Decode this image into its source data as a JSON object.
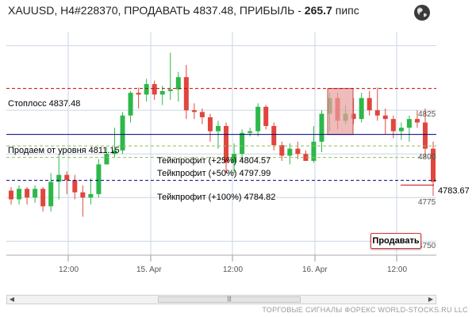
{
  "header": {
    "title_prefix": "XAUUSD, H4#228370, ПРОДАВАТЬ 4837.48, ПРИБЫЛЬ - ",
    "profit_value": "265.7",
    "profit_unit": " пипс",
    "globe_icon": "globe-icon"
  },
  "levels": {
    "stoploss_label": "Стоплосс 4837.48",
    "entry_label": "Продаем от уровня 4811.15",
    "tp1_label": "Тейкпрофит (+25%) 4804.57",
    "tp2_label": "Тейкпрофит (+50%) 4797.99",
    "tp3_label": "Тейкпрофит (+100%) 4784.82",
    "current_price_label": "4783.67"
  },
  "axis": {
    "price_ticks": [
      "4825",
      "4800",
      "4775",
      "4750"
    ],
    "time_ticks": [
      "12:00",
      "15. Apr",
      "12:00",
      "16. Apr",
      "12:00"
    ]
  },
  "sell_button_label": "Продавать",
  "footer_text": "ТОРГОВЫЕ СИГНАЛЫ ФОРЕКС WORLD-STOCKS.RU LLC",
  "colors": {
    "bull": "#2db84a",
    "bear": "#e0463e",
    "stoploss": "#cc0000",
    "entry": "#000080",
    "tp": "#8fbf5a"
  },
  "chart_data": {
    "type": "candlestick",
    "symbol": "XAUUSD",
    "timeframe": "H4",
    "candles": [
      {
        "o": 4779,
        "h": 4781,
        "l": 4771,
        "c": 4774
      },
      {
        "o": 4774,
        "h": 4782,
        "l": 4771,
        "c": 4780
      },
      {
        "o": 4780,
        "h": 4781,
        "l": 4771,
        "c": 4775
      },
      {
        "o": 4775,
        "h": 4782,
        "l": 4772,
        "c": 4780
      },
      {
        "o": 4780,
        "h": 4781,
        "l": 4767,
        "c": 4770
      },
      {
        "o": 4770,
        "h": 4789,
        "l": 4767,
        "c": 4784
      },
      {
        "o": 4784,
        "h": 4799,
        "l": 4774,
        "c": 4788
      },
      {
        "o": 4788,
        "h": 4790,
        "l": 4777,
        "c": 4785
      },
      {
        "o": 4785,
        "h": 4788,
        "l": 4774,
        "c": 4778
      },
      {
        "o": 4778,
        "h": 4782,
        "l": 4764,
        "c": 4775
      },
      {
        "o": 4775,
        "h": 4786,
        "l": 4771,
        "c": 4777
      },
      {
        "o": 4777,
        "h": 4797,
        "l": 4775,
        "c": 4794
      },
      {
        "o": 4794,
        "h": 4804,
        "l": 4794,
        "c": 4800
      },
      {
        "o": 4800,
        "h": 4815,
        "l": 4798,
        "c": 4802
      },
      {
        "o": 4802,
        "h": 4824,
        "l": 4800,
        "c": 4822
      },
      {
        "o": 4822,
        "h": 4836,
        "l": 4818,
        "c": 4835
      },
      {
        "o": 4835,
        "h": 4838,
        "l": 4826,
        "c": 4834
      },
      {
        "o": 4834,
        "h": 4843,
        "l": 4830,
        "c": 4840
      },
      {
        "o": 4840,
        "h": 4842,
        "l": 4831,
        "c": 4834
      },
      {
        "o": 4834,
        "h": 4839,
        "l": 4828,
        "c": 4836
      },
      {
        "o": 4836,
        "h": 4858,
        "l": 4831,
        "c": 4837
      },
      {
        "o": 4837,
        "h": 4847,
        "l": 4830,
        "c": 4844
      },
      {
        "o": 4844,
        "h": 4851,
        "l": 4820,
        "c": 4825
      },
      {
        "o": 4825,
        "h": 4829,
        "l": 4820,
        "c": 4824
      },
      {
        "o": 4824,
        "h": 4826,
        "l": 4817,
        "c": 4821
      },
      {
        "o": 4821,
        "h": 4823,
        "l": 4807,
        "c": 4813
      },
      {
        "o": 4813,
        "h": 4819,
        "l": 4803,
        "c": 4816
      },
      {
        "o": 4816,
        "h": 4818,
        "l": 4789,
        "c": 4795
      },
      {
        "o": 4795,
        "h": 4806,
        "l": 4789,
        "c": 4800
      },
      {
        "o": 4800,
        "h": 4814,
        "l": 4796,
        "c": 4812
      },
      {
        "o": 4812,
        "h": 4815,
        "l": 4810,
        "c": 4813
      },
      {
        "o": 4813,
        "h": 4829,
        "l": 4810,
        "c": 4827
      },
      {
        "o": 4827,
        "h": 4828,
        "l": 4814,
        "c": 4816
      },
      {
        "o": 4816,
        "h": 4818,
        "l": 4802,
        "c": 4805
      },
      {
        "o": 4805,
        "h": 4807,
        "l": 4796,
        "c": 4799
      },
      {
        "o": 4799,
        "h": 4806,
        "l": 4794,
        "c": 4803
      },
      {
        "o": 4803,
        "h": 4807,
        "l": 4797,
        "c": 4800
      },
      {
        "o": 4800,
        "h": 4802,
        "l": 4796,
        "c": 4796
      },
      {
        "o": 4796,
        "h": 4816,
        "l": 4795,
        "c": 4807
      },
      {
        "o": 4807,
        "h": 4825,
        "l": 4801,
        "c": 4823
      },
      {
        "o": 4823,
        "h": 4835,
        "l": 4813,
        "c": 4832
      },
      {
        "o": 4832,
        "h": 4835,
        "l": 4814,
        "c": 4819
      },
      {
        "o": 4819,
        "h": 4828,
        "l": 4817,
        "c": 4823
      },
      {
        "o": 4823,
        "h": 4832,
        "l": 4817,
        "c": 4820
      },
      {
        "o": 4820,
        "h": 4835,
        "l": 4818,
        "c": 4832
      },
      {
        "o": 4832,
        "h": 4836,
        "l": 4822,
        "c": 4825
      },
      {
        "o": 4825,
        "h": 4838,
        "l": 4819,
        "c": 4822
      },
      {
        "o": 4822,
        "h": 4826,
        "l": 4811,
        "c": 4820
      },
      {
        "o": 4820,
        "h": 4822,
        "l": 4809,
        "c": 4813
      },
      {
        "o": 4813,
        "h": 4818,
        "l": 4808,
        "c": 4815
      },
      {
        "o": 4815,
        "h": 4822,
        "l": 4807,
        "c": 4820
      },
      {
        "o": 4820,
        "h": 4825,
        "l": 4815,
        "c": 4818
      },
      {
        "o": 4818,
        "h": 4826,
        "l": 4798,
        "c": 4803
      },
      {
        "o": 4803,
        "h": 4807,
        "l": 4776,
        "c": 4784
      }
    ],
    "stoploss": 4837.48,
    "entry": 4811.15,
    "takeprofits": [
      4804.57,
      4797.99,
      4784.82
    ],
    "current_price": 4783.67,
    "ylim": [
      4742,
      4870
    ],
    "grid": true
  }
}
